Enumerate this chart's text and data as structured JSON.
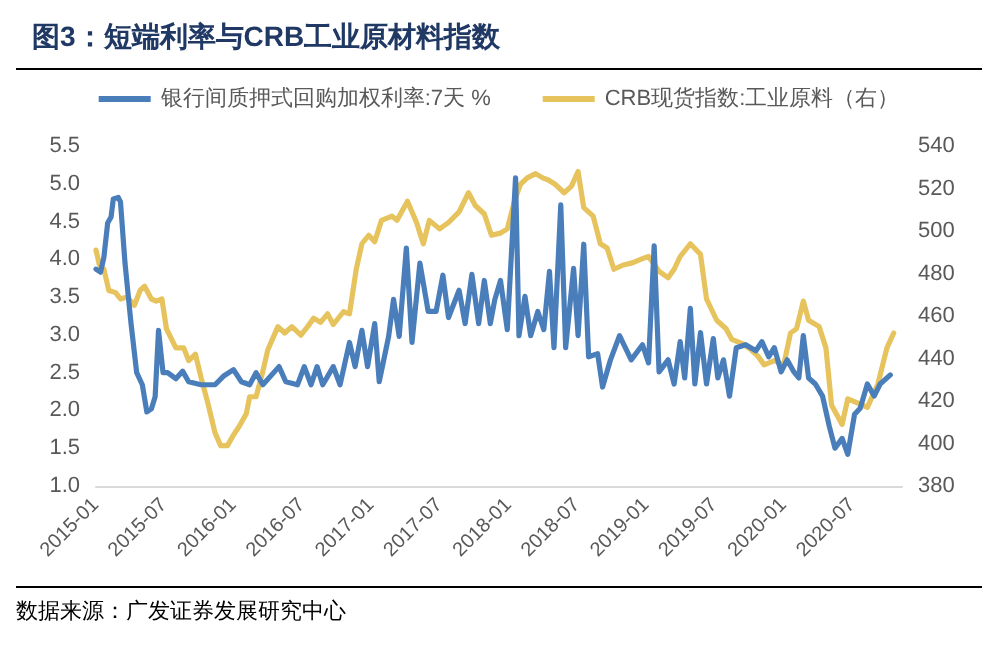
{
  "chart_data": {
    "type": "line",
    "title": "图3：短端利率与CRB工业原材料指数",
    "annotations": [
      "数据来源：广发证券发展研究中心"
    ],
    "legend": "top",
    "grid": false,
    "marker": "none",
    "xlim": [
      "2015-01-01",
      "2020-11-10"
    ],
    "xticks": [
      {
        "value": "2015-01-01",
        "label": "2015-01"
      },
      {
        "value": "2015-07-01",
        "label": "2015-07"
      },
      {
        "value": "2016-01-01",
        "label": "2016-01"
      },
      {
        "value": "2016-07-01",
        "label": "2016-07"
      },
      {
        "value": "2017-01-01",
        "label": "2017-01"
      },
      {
        "value": "2017-07-01",
        "label": "2017-07"
      },
      {
        "value": "2018-01-01",
        "label": "2018-01"
      },
      {
        "value": "2018-07-01",
        "label": "2018-07"
      },
      {
        "value": "2019-01-01",
        "label": "2019-01"
      },
      {
        "value": "2019-07-01",
        "label": "2019-07"
      },
      {
        "value": "2020-01-01",
        "label": "2020-01"
      },
      {
        "value": "2020-07-01",
        "label": "2020-07"
      }
    ],
    "ylim": [
      1,
      5.5
    ],
    "yticks": [
      {
        "value": 1,
        "label": "1.0"
      },
      {
        "value": 1.5,
        "label": "1.5"
      },
      {
        "value": 2,
        "label": "2.0"
      },
      {
        "value": 2.5,
        "label": "2.5"
      },
      {
        "value": 3,
        "label": "3.0"
      },
      {
        "value": 3.5,
        "label": "3.5"
      },
      {
        "value": 4,
        "label": "4.0"
      },
      {
        "value": 4.5,
        "label": "4.5"
      },
      {
        "value": 5,
        "label": "5.0"
      },
      {
        "value": 5.5,
        "label": "5.5"
      }
    ],
    "y2lim": [
      380,
      540
    ],
    "y2ticks": [
      380,
      400,
      420,
      440,
      460,
      480,
      500,
      520,
      540
    ],
    "series": [
      {
        "name": "银行间质押式回购加权利率:7天 %",
        "color": "#4a7ebb",
        "x": [
          "2015-01-01",
          "2015-01-13",
          "2015-01-22",
          "2015-02-01",
          "2015-02-10",
          "2015-02-16",
          "2015-03-01",
          "2015-03-07",
          "2015-03-19",
          "2015-04-04",
          "2015-04-19",
          "2015-05-04",
          "2015-05-16",
          "2015-05-28",
          "2015-06-07",
          "2015-06-16",
          "2015-06-28",
          "2015-07-10",
          "2015-08-01",
          "2015-08-19",
          "2015-09-04",
          "2015-10-07",
          "2015-11-13",
          "2015-12-07",
          "2016-01-01",
          "2016-01-22",
          "2016-02-13",
          "2016-03-01",
          "2016-03-19",
          "2016-05-01",
          "2016-05-19",
          "2016-06-19",
          "2016-07-07",
          "2016-07-25",
          "2016-08-10",
          "2016-08-25",
          "2016-09-22",
          "2016-10-10",
          "2016-11-04",
          "2016-11-19",
          "2016-12-07",
          "2016-12-22",
          "2017-01-10",
          "2017-01-22",
          "2017-02-16",
          "2017-03-01",
          "2017-03-16",
          "2017-04-04",
          "2017-04-19",
          "2017-05-10",
          "2017-06-01",
          "2017-06-22",
          "2017-07-10",
          "2017-07-25",
          "2017-08-22",
          "2017-09-07",
          "2017-09-25",
          "2017-10-13",
          "2017-10-28",
          "2017-11-13",
          "2017-11-25",
          "2017-12-10",
          "2017-12-28",
          "2018-01-19",
          "2018-01-28",
          "2018-02-13",
          "2018-02-28",
          "2018-03-19",
          "2018-04-04",
          "2018-04-19",
          "2018-05-01",
          "2018-05-19",
          "2018-06-01",
          "2018-06-22",
          "2018-07-04",
          "2018-07-19",
          "2018-08-01",
          "2018-08-25",
          "2018-09-07",
          "2018-09-28",
          "2018-10-22",
          "2018-11-22",
          "2018-12-22",
          "2019-01-07",
          "2019-01-22",
          "2019-02-04",
          "2019-02-28",
          "2019-03-16",
          "2019-04-01",
          "2019-04-13",
          "2019-04-28",
          "2019-05-10",
          "2019-05-25",
          "2019-06-10",
          "2019-06-28",
          "2019-07-10",
          "2019-07-25",
          "2019-08-10",
          "2019-08-28",
          "2019-09-22",
          "2019-10-19",
          "2019-11-04",
          "2019-11-22",
          "2019-12-07",
          "2019-12-25",
          "2020-01-10",
          "2020-01-28",
          "2020-02-10",
          "2020-02-22",
          "2020-03-07",
          "2020-03-25",
          "2020-04-13",
          "2020-05-01",
          "2020-05-16",
          "2020-06-04",
          "2020-06-19",
          "2020-07-07",
          "2020-07-22",
          "2020-08-10",
          "2020-08-28",
          "2020-09-13",
          "2020-10-10"
        ],
        "values": [
          3.87,
          3.83,
          4.03,
          4.48,
          4.56,
          4.8,
          4.82,
          4.76,
          3.95,
          3.15,
          2.5,
          2.34,
          1.98,
          2.02,
          2.18,
          3.06,
          2.5,
          2.5,
          2.42,
          2.52,
          2.38,
          2.34,
          2.34,
          2.46,
          2.54,
          2.38,
          2.34,
          2.5,
          2.34,
          2.58,
          2.38,
          2.34,
          2.58,
          2.34,
          2.58,
          2.34,
          2.58,
          2.34,
          2.9,
          2.58,
          3.06,
          2.58,
          3.15,
          2.38,
          2.98,
          3.47,
          2.98,
          4.15,
          2.9,
          3.95,
          3.31,
          3.31,
          3.79,
          3.23,
          3.59,
          3.15,
          3.8,
          3.15,
          3.72,
          3.15,
          3.47,
          3.72,
          3.07,
          5.08,
          2.99,
          3.51,
          2.99,
          3.31,
          3.07,
          3.84,
          2.83,
          4.72,
          2.83,
          3.88,
          2.99,
          4.2,
          2.71,
          2.75,
          2.31,
          2.67,
          2.99,
          2.67,
          2.87,
          2.63,
          4.18,
          2.51,
          2.67,
          2.35,
          2.91,
          2.43,
          3.35,
          2.35,
          3.03,
          2.35,
          2.95,
          2.43,
          2.67,
          2.19,
          2.83,
          2.87,
          2.79,
          2.91,
          2.71,
          2.83,
          2.51,
          2.67,
          2.51,
          2.43,
          2.99,
          2.43,
          2.35,
          2.19,
          1.79,
          1.5,
          1.63,
          1.42,
          1.95,
          2.03,
          2.35,
          2.19,
          2.35,
          2.47
        ]
      },
      {
        "name": "CRB现货指数:工业原料（右）",
        "color": "#e6c35c",
        "axis": "y2",
        "x": [
          "2015-01-01",
          "2015-01-10",
          "2015-01-22",
          "2015-02-04",
          "2015-02-22",
          "2015-03-07",
          "2015-03-25",
          "2015-04-13",
          "2015-04-28",
          "2015-05-10",
          "2015-05-28",
          "2015-06-10",
          "2015-06-25",
          "2015-07-07",
          "2015-08-01",
          "2015-08-22",
          "2015-09-04",
          "2015-09-22",
          "2015-10-07",
          "2015-10-25",
          "2015-11-13",
          "2015-11-28",
          "2015-12-16",
          "2016-01-01",
          "2016-01-16",
          "2016-02-04",
          "2016-02-13",
          "2016-03-01",
          "2016-03-19",
          "2016-04-01",
          "2016-04-28",
          "2016-05-16",
          "2016-06-04",
          "2016-06-28",
          "2016-07-16",
          "2016-08-01",
          "2016-08-19",
          "2016-09-07",
          "2016-09-22",
          "2016-10-19",
          "2016-11-04",
          "2016-11-22",
          "2016-12-07",
          "2016-12-25",
          "2017-01-10",
          "2017-01-28",
          "2017-02-25",
          "2017-03-10",
          "2017-04-07",
          "2017-05-01",
          "2017-05-19",
          "2017-06-04",
          "2017-07-01",
          "2017-07-25",
          "2017-08-22",
          "2017-09-16",
          "2017-10-04",
          "2017-10-28",
          "2017-11-16",
          "2017-12-10",
          "2017-12-28",
          "2018-01-16",
          "2018-02-01",
          "2018-02-19",
          "2018-03-13",
          "2018-04-01",
          "2018-04-16",
          "2018-05-04",
          "2018-05-28",
          "2018-06-16",
          "2018-07-04",
          "2018-07-19",
          "2018-08-13",
          "2018-09-01",
          "2018-09-19",
          "2018-10-07",
          "2018-11-01",
          "2018-11-25",
          "2018-12-22",
          "2019-01-07",
          "2019-02-04",
          "2019-02-28",
          "2019-03-16",
          "2019-04-01",
          "2019-04-28",
          "2019-05-25",
          "2019-06-10",
          "2019-07-07",
          "2019-08-01",
          "2019-08-16",
          "2019-09-13",
          "2019-10-07",
          "2019-10-25",
          "2019-11-10",
          "2019-12-07",
          "2020-01-01",
          "2020-01-19",
          "2020-02-04",
          "2020-02-22",
          "2020-03-07",
          "2020-04-04",
          "2020-04-22",
          "2020-05-07",
          "2020-06-04",
          "2020-06-19",
          "2020-07-16",
          "2020-08-10",
          "2020-09-07",
          "2020-10-01",
          "2020-10-19"
        ],
        "values": [
          491,
          484,
          482,
          472,
          471,
          468,
          469,
          465,
          472,
          474,
          468,
          467,
          468,
          454,
          445,
          445,
          439,
          442,
          431,
          419,
          405,
          399,
          399,
          404,
          408,
          414,
          422,
          422,
          434,
          444,
          455,
          452,
          455,
          451,
          455,
          459,
          457,
          461,
          456,
          462,
          461,
          482,
          494,
          498,
          495,
          505,
          507,
          505,
          514,
          504,
          494,
          505,
          501,
          504,
          509,
          518,
          512,
          508,
          498,
          499,
          501,
          514,
          522,
          525,
          527,
          525,
          524,
          522,
          518,
          521,
          528,
          511,
          507,
          494,
          492,
          482,
          484,
          485,
          487,
          488,
          481,
          478,
          482,
          488,
          494,
          489,
          468,
          458,
          454,
          449,
          447,
          444,
          441,
          437,
          439,
          437,
          452,
          454,
          467,
          458,
          455,
          445,
          418,
          409,
          421,
          419,
          417,
          428,
          445,
          452
        ]
      }
    ]
  }
}
